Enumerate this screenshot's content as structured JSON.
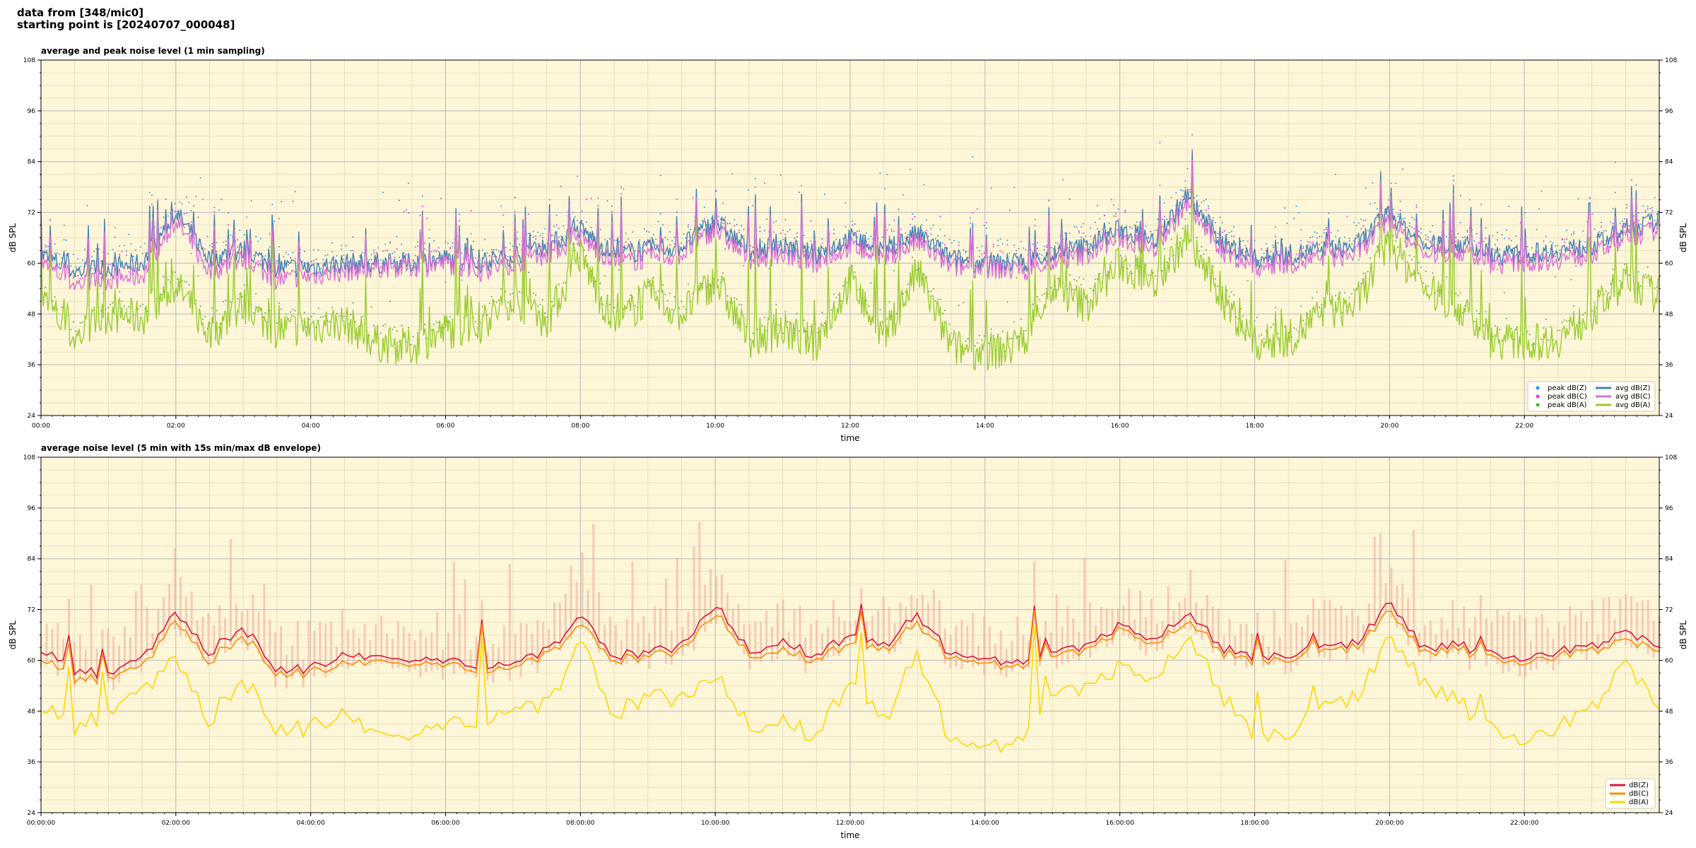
{
  "header": {
    "line1": "data from [348/mic0]",
    "line2": "starting point is [20240707_000048]"
  },
  "colors": {
    "background": "#fdf6d8",
    "grid_major": "#b8b8b8",
    "grid_minor": "#e6dcb4",
    "peak_z": "#3399dd",
    "peak_c": "#ee33dd",
    "peak_a": "#55aa44",
    "avg_z": "#4682b4",
    "avg_c": "#da70d6",
    "avg_a": "#9acd32",
    "line_z": "#dc143c",
    "line_c": "#ff8c00",
    "line_a": "#ffd700",
    "envelope": "#f4a59a"
  },
  "chart_data": [
    {
      "type": "line",
      "title": "average and peak noise level (1 min sampling)",
      "xlabel": "time",
      "ylabel": "dB SPL",
      "ylim": [
        24,
        108
      ],
      "xlim_hours": [
        0,
        24
      ],
      "y_ticks": [
        "24",
        "36",
        "48",
        "60",
        "72",
        "84",
        "96",
        "108"
      ],
      "x_ticks": [
        "00:00",
        "02:00",
        "04:00",
        "06:00",
        "08:00",
        "10:00",
        "12:00",
        "14:00",
        "16:00",
        "18:00",
        "20:00",
        "22:00"
      ],
      "grid": true,
      "legend_position": "lower-right",
      "legend": {
        "col1": [
          "peak dB(Z)",
          "peak dB(C)",
          "peak dB(A)"
        ],
        "col2": [
          "avg dB(Z)",
          "avg dB(C)",
          "avg dB(A)"
        ]
      },
      "x_hours": [
        0,
        0.5,
        1,
        1.5,
        2,
        2.5,
        3,
        3.5,
        4,
        4.5,
        5,
        5.5,
        6,
        6.5,
        7,
        7.5,
        8,
        8.5,
        9,
        9.5,
        10,
        10.5,
        11,
        11.5,
        12,
        12.5,
        13,
        13.5,
        14,
        14.5,
        15,
        15.5,
        16,
        16.5,
        17,
        17.5,
        18,
        18.5,
        19,
        19.5,
        20,
        20.5,
        21,
        21.5,
        22,
        22.5,
        23,
        23.5,
        24
      ],
      "series": [
        {
          "name": "avg dB(Z)",
          "values": [
            62,
            58,
            59,
            60,
            72,
            61,
            63,
            59,
            59,
            60,
            60,
            60,
            61,
            60,
            62,
            64,
            68,
            62,
            63,
            64,
            70,
            63,
            64,
            62,
            66,
            63,
            67,
            61,
            60,
            60,
            62,
            64,
            68,
            65,
            76,
            65,
            61,
            62,
            63,
            64,
            72,
            64,
            65,
            62,
            62,
            63,
            64,
            68,
            70
          ]
        },
        {
          "name": "avg dB(C)",
          "values": [
            60,
            55,
            56,
            57,
            70,
            58,
            61,
            56,
            57,
            58,
            59,
            59,
            60,
            58,
            60,
            62,
            66,
            60,
            61,
            62,
            68,
            61,
            62,
            60,
            64,
            61,
            65,
            59,
            59,
            58,
            60,
            62,
            66,
            63,
            74,
            63,
            59,
            60,
            61,
            62,
            70,
            62,
            63,
            60,
            60,
            61,
            62,
            66,
            68
          ]
        },
        {
          "name": "avg dB(A)",
          "values": [
            52,
            42,
            48,
            47,
            55,
            43,
            50,
            44,
            45,
            46,
            41,
            40,
            44,
            45,
            52,
            46,
            62,
            45,
            52,
            48,
            56,
            42,
            44,
            41,
            56,
            42,
            58,
            40,
            39,
            40,
            54,
            50,
            60,
            55,
            66,
            52,
            41,
            42,
            48,
            50,
            65,
            54,
            50,
            42,
            41,
            42,
            48,
            56,
            52
          ]
        }
      ]
    },
    {
      "type": "line",
      "title": "average noise level (5 min with 15s min/max dB envelope)",
      "xlabel": "time",
      "ylabel": "dB SPL",
      "ylim": [
        24,
        108
      ],
      "xlim_hours": [
        0,
        24
      ],
      "y_ticks": [
        "24",
        "36",
        "48",
        "60",
        "72",
        "84",
        "96",
        "108"
      ],
      "x_ticks": [
        "00:00:00",
        "02:00:00",
        "04:00:00",
        "06:00:00",
        "08:00:00",
        "10:00:00",
        "12:00:00",
        "14:00:00",
        "16:00:00",
        "18:00:00",
        "20:00:00",
        "22:00:00"
      ],
      "grid": true,
      "legend_position": "lower-right",
      "legend": [
        "dB(Z)",
        "dB(C)",
        "dB(A)"
      ],
      "x_hours": [
        0,
        0.5,
        1,
        1.5,
        2,
        2.5,
        3,
        3.5,
        4,
        4.5,
        5,
        5.5,
        6,
        6.5,
        7,
        7.5,
        8,
        8.5,
        9,
        9.5,
        10,
        10.5,
        11,
        11.5,
        12,
        12.5,
        13,
        13.5,
        14,
        14.5,
        15,
        15.5,
        16,
        16.5,
        17,
        17.5,
        18,
        18.5,
        19,
        19.5,
        20,
        20.5,
        21,
        21.5,
        22,
        22.5,
        23,
        23.5,
        24
      ],
      "series": [
        {
          "name": "dB(Z)",
          "values": [
            63,
            57,
            57,
            60,
            71,
            62,
            68,
            58,
            58,
            61,
            60,
            60,
            60,
            59,
            60,
            62,
            70,
            61,
            62,
            63,
            74,
            62,
            64,
            61,
            66,
            63,
            71,
            61,
            60,
            59,
            62,
            63,
            68,
            64,
            72,
            63,
            60,
            61,
            63,
            64,
            74,
            63,
            64,
            61,
            61,
            62,
            63,
            67,
            64
          ]
        },
        {
          "name": "dB(C)",
          "values": [
            61,
            55,
            56,
            58,
            69,
            60,
            66,
            57,
            57,
            59,
            59,
            59,
            59,
            58,
            59,
            61,
            68,
            60,
            61,
            62,
            72,
            61,
            62,
            60,
            64,
            62,
            69,
            60,
            59,
            58,
            61,
            62,
            67,
            63,
            70,
            62,
            59,
            60,
            62,
            63,
            72,
            62,
            63,
            60,
            60,
            61,
            62,
            65,
            63
          ]
        },
        {
          "name": "dB(A)",
          "values": [
            50,
            43,
            48,
            52,
            60,
            46,
            56,
            44,
            44,
            47,
            41,
            42,
            45,
            46,
            50,
            49,
            64,
            47,
            52,
            50,
            58,
            44,
            45,
            42,
            55,
            45,
            62,
            40,
            39,
            40,
            52,
            53,
            58,
            54,
            67,
            52,
            41,
            42,
            49,
            51,
            66,
            55,
            51,
            43,
            42,
            44,
            48,
            60,
            50
          ]
        }
      ]
    }
  ]
}
